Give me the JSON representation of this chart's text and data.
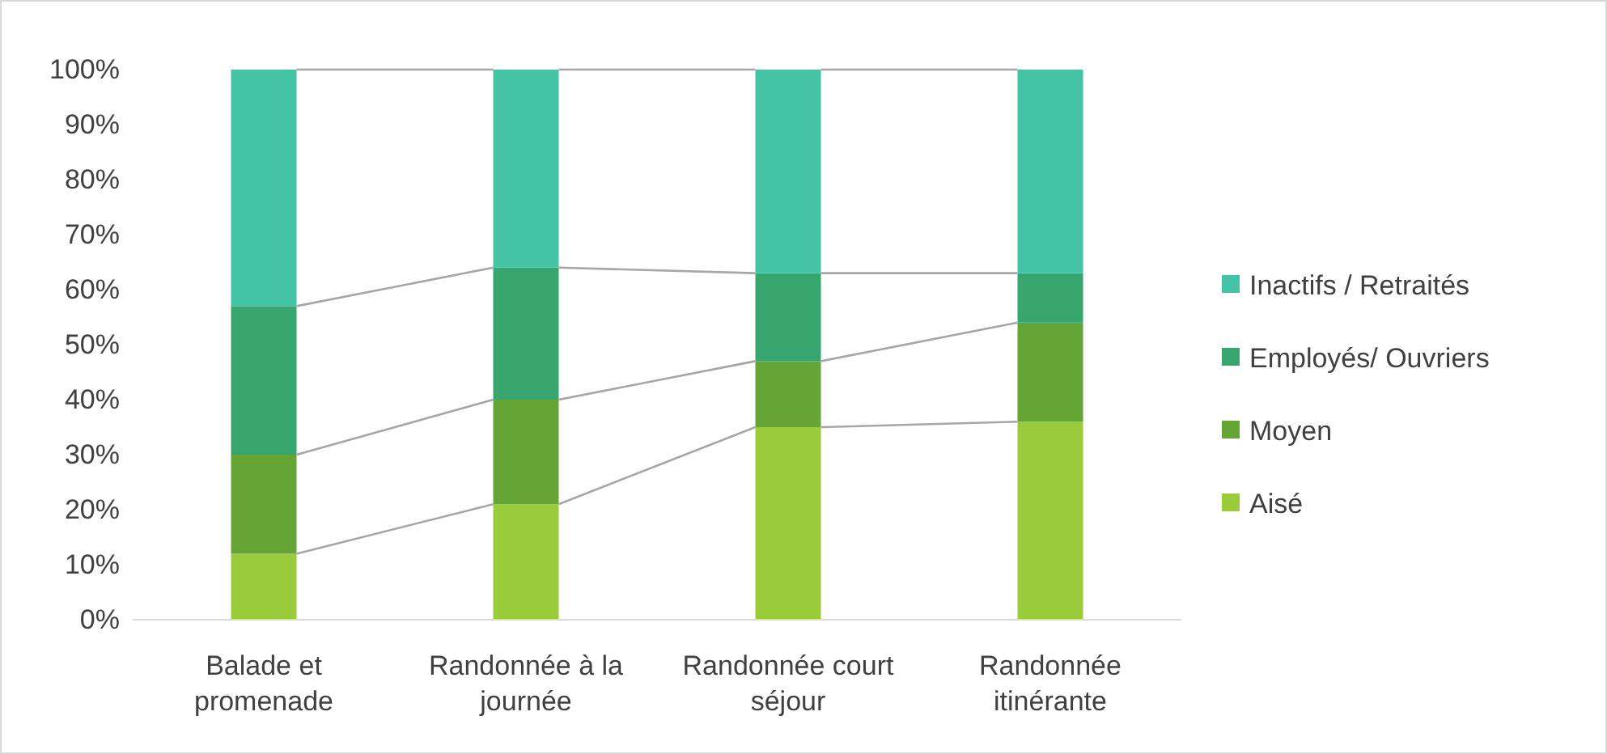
{
  "chart_data": {
    "type": "bar",
    "stacked": true,
    "categories": [
      "Balade et promenade",
      "Randonnée à la journée",
      "Randonnée court séjour",
      "Randonnée itinérante"
    ],
    "series": [
      {
        "name": "Aisé",
        "color": "#9acb3a",
        "values": [
          12,
          21,
          35,
          36
        ]
      },
      {
        "name": "Moyen",
        "color": "#64a536",
        "values": [
          18,
          19,
          12,
          18
        ]
      },
      {
        "name": "Employés/ Ouvriers",
        "color": "#37a66e",
        "values": [
          27,
          24,
          16,
          9
        ]
      },
      {
        "name": "Inactifs / Retraités",
        "color": "#45c4a5",
        "values": [
          43,
          36,
          37,
          37
        ]
      }
    ],
    "ylim": [
      0,
      100
    ],
    "yticks": [
      {
        "value": 0,
        "label": "0%"
      },
      {
        "value": 10,
        "label": "10%"
      },
      {
        "value": 20,
        "label": "20%"
      },
      {
        "value": 30,
        "label": "30%"
      },
      {
        "value": 40,
        "label": "40%"
      },
      {
        "value": 50,
        "label": "50%"
      },
      {
        "value": 60,
        "label": "60%"
      },
      {
        "value": 70,
        "label": "70%"
      },
      {
        "value": 80,
        "label": "80%"
      },
      {
        "value": 90,
        "label": "90%"
      },
      {
        "value": 100,
        "label": "100%"
      }
    ],
    "grid": false,
    "legend": "right"
  }
}
